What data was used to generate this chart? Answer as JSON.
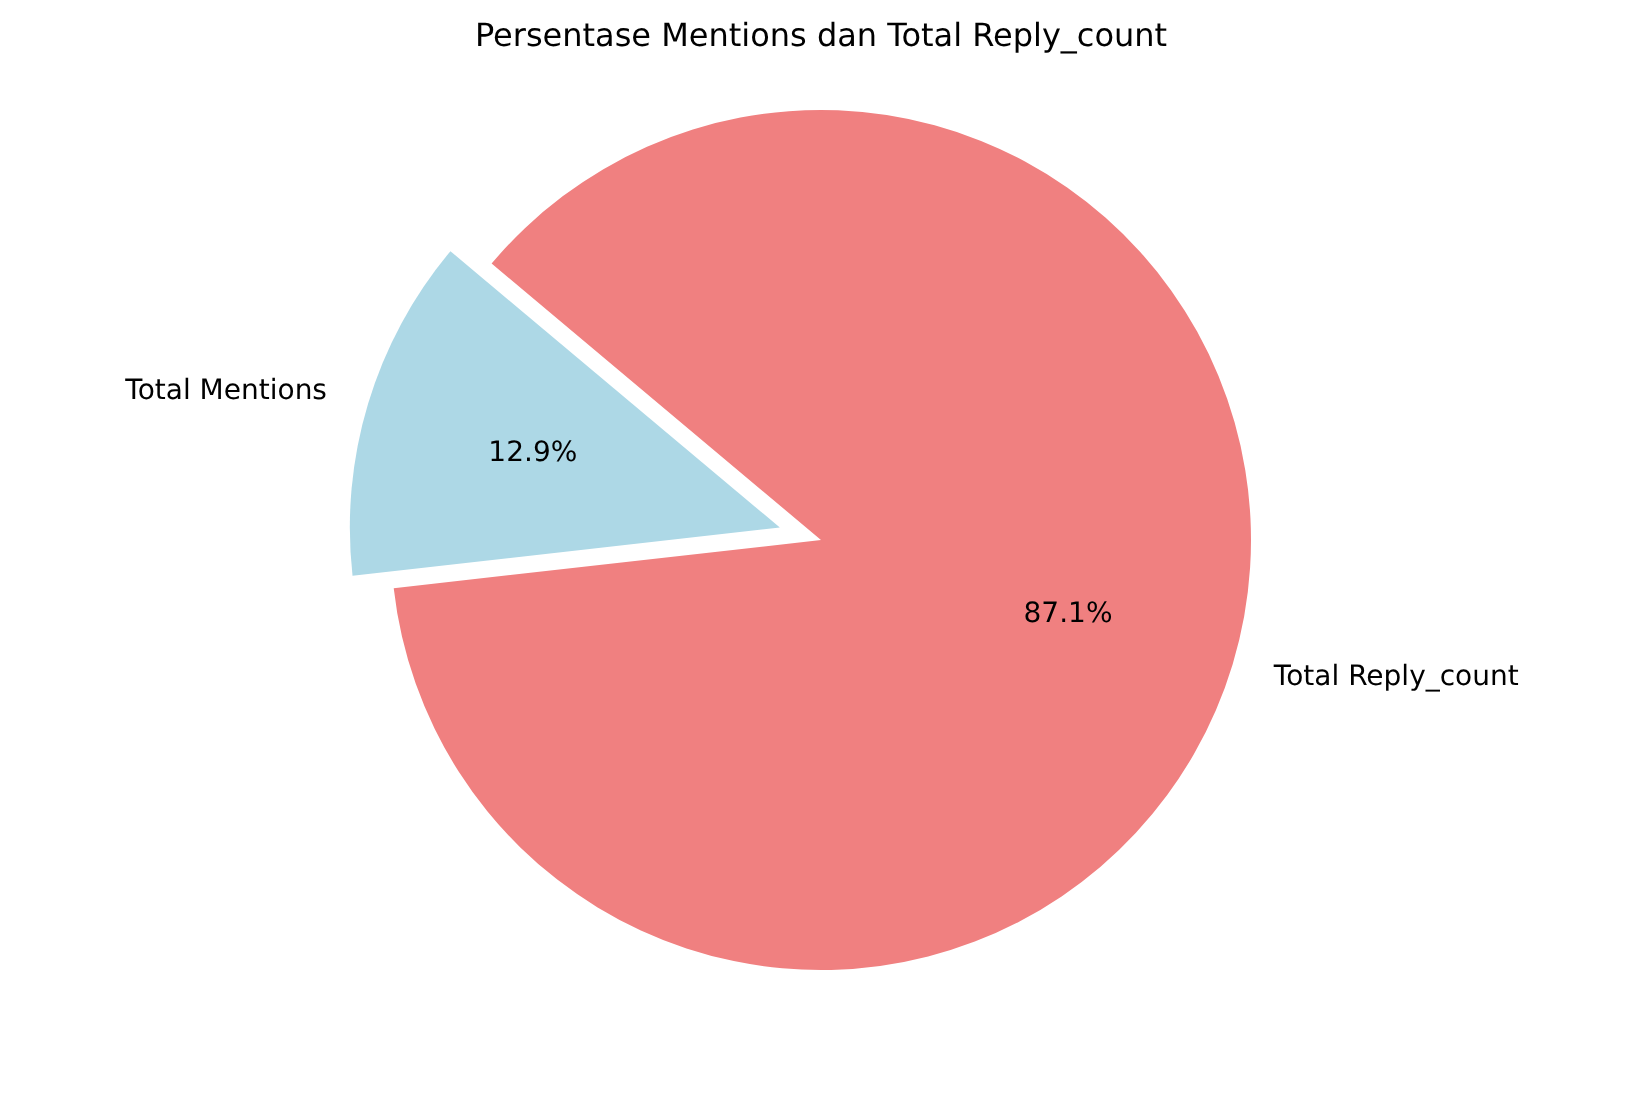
{
  "chart_data": {
    "type": "pie",
    "title": "Persentase Mentions dan Total Reply_count",
    "categories": [
      "Total Mentions",
      "Total Reply_count"
    ],
    "values": [
      12.9,
      87.1
    ],
    "colors": [
      "#add8e6",
      "#f08080"
    ],
    "value_labels": [
      "12.9%",
      "87.1%"
    ]
  }
}
